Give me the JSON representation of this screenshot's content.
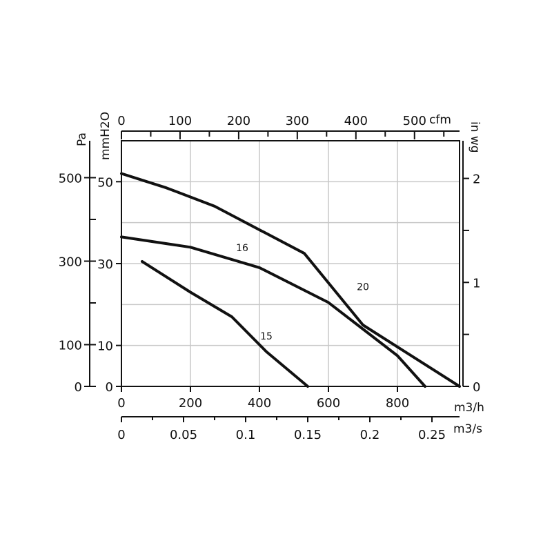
{
  "chart_data": {
    "type": "line",
    "title": "",
    "x_primary": {
      "unit": "m3/h",
      "min": 0,
      "max": 980,
      "ticks": [
        0,
        200,
        400,
        600,
        800
      ],
      "tick_labels": [
        "0",
        "200",
        "400",
        "600",
        "800"
      ]
    },
    "x_secondary_bottom": {
      "unit": "m3/s",
      "ticks": [
        0,
        0.05,
        0.1,
        0.15,
        0.2,
        0.25
      ],
      "tick_labels": [
        "0",
        "0.05",
        "0.1",
        "0.15",
        "0.2",
        "0.25"
      ]
    },
    "x_secondary_top": {
      "unit": "cfm",
      "ticks": [
        0,
        100,
        200,
        300,
        400,
        500
      ],
      "tick_labels": [
        "0",
        "100",
        "200",
        "300",
        "400",
        "500"
      ]
    },
    "y_primary": {
      "unit": "mmH2O",
      "min": 0,
      "max": 60,
      "ticks": [
        0,
        10,
        30,
        50
      ],
      "tick_labels": [
        "0",
        "10",
        "30",
        "50"
      ]
    },
    "y_secondary_left": {
      "unit": "Pa",
      "ticks": [
        0,
        100,
        300,
        500
      ],
      "tick_labels": [
        "0",
        "100",
        "300",
        "500"
      ]
    },
    "y_secondary_right": {
      "unit": "in wg",
      "ticks": [
        0,
        1,
        2
      ],
      "tick_labels": [
        "0",
        "1",
        "2"
      ]
    },
    "grid": true,
    "series": [
      {
        "name": "20",
        "x": [
          0,
          130,
          270,
          530,
          700,
          980
        ],
        "y": [
          52,
          48.5,
          44,
          32.5,
          15,
          0
        ]
      },
      {
        "name": "16",
        "x": [
          0,
          200,
          400,
          600,
          800,
          880
        ],
        "y": [
          36.5,
          34,
          29,
          20.5,
          7.5,
          0
        ]
      },
      {
        "name": "15",
        "x": [
          60,
          200,
          320,
          420,
          540
        ],
        "y": [
          30.5,
          23,
          17,
          8.5,
          0
        ]
      }
    ]
  }
}
